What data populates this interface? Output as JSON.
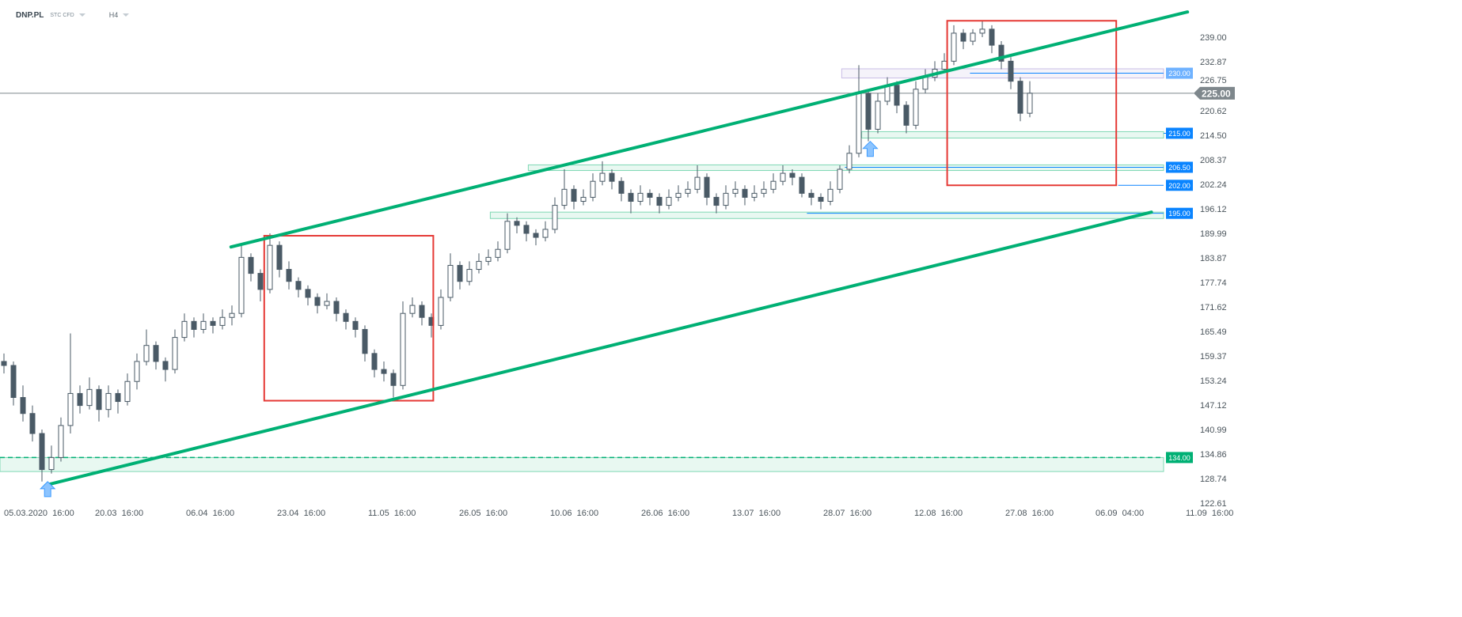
{
  "header": {
    "symbol": "DNP.PL",
    "type": "STC CFD",
    "timeframe": "H4"
  },
  "colors": {
    "candle": "#4a5a66",
    "trend": "#00b074",
    "box": "#e53935",
    "level_label": "#0a84ff",
    "zone_green": "#7fd8b4",
    "zone_purple": "#c9bde6",
    "price_tag": "#7e878c"
  },
  "chart_data": {
    "type": "candlestick",
    "ylim": [
      122.61,
      245
    ],
    "y_ticks": [
      "239.00",
      "232.87",
      "226.75",
      "220.62",
      "214.50",
      "208.37",
      "202.24",
      "196.12",
      "189.99",
      "183.87",
      "177.74",
      "171.62",
      "165.49",
      "159.37",
      "153.24",
      "147.12",
      "140.99",
      "134.86",
      "128.74",
      "122.61"
    ],
    "x_ticks": [
      "05.03.2020  16:00",
      "20.03  16:00",
      "06.04  16:00",
      "23.04  16:00",
      "11.05  16:00",
      "26.05  16:00",
      "10.06  16:00",
      "26.06  16:00",
      "13.07  16:00",
      "28.07  16:00",
      "12.08  16:00",
      "27.08  16:00",
      "06.09  04:00",
      "11.09  16:00"
    ],
    "candles_ohlc": [
      [
        158,
        160,
        155,
        157
      ],
      [
        157,
        158,
        147,
        149
      ],
      [
        149,
        152,
        143,
        145
      ],
      [
        145,
        147,
        138,
        140
      ],
      [
        140,
        141,
        128,
        131
      ],
      [
        131,
        137,
        130,
        134
      ],
      [
        134,
        144,
        133,
        142
      ],
      [
        142,
        165,
        140,
        150
      ],
      [
        150,
        152,
        145,
        147
      ],
      [
        147,
        154,
        146,
        151
      ],
      [
        151,
        152,
        143,
        146
      ],
      [
        146,
        152,
        144,
        150
      ],
      [
        150,
        151,
        145,
        148
      ],
      [
        148,
        155,
        147,
        153
      ],
      [
        153,
        160,
        151,
        158
      ],
      [
        158,
        166,
        157,
        162
      ],
      [
        162,
        163,
        156,
        158
      ],
      [
        158,
        159,
        153,
        156
      ],
      [
        156,
        166,
        155,
        164
      ],
      [
        164,
        170,
        163,
        168
      ],
      [
        168,
        169,
        164,
        166
      ],
      [
        166,
        170,
        165,
        168
      ],
      [
        168,
        169,
        165,
        167
      ],
      [
        167,
        171,
        166,
        169
      ],
      [
        169,
        172,
        167,
        170
      ],
      [
        170,
        187,
        169,
        184
      ],
      [
        184,
        185,
        178,
        180
      ],
      [
        180,
        181,
        173,
        176
      ],
      [
        176,
        190,
        175,
        187
      ],
      [
        187,
        188,
        179,
        181
      ],
      [
        181,
        183,
        176,
        178
      ],
      [
        178,
        179,
        174,
        176
      ],
      [
        176,
        177,
        172,
        174
      ],
      [
        174,
        175,
        170,
        172
      ],
      [
        172,
        175,
        171,
        173
      ],
      [
        173,
        174,
        168,
        170
      ],
      [
        170,
        171,
        166,
        168
      ],
      [
        168,
        169,
        164,
        166
      ],
      [
        166,
        167,
        158,
        160
      ],
      [
        160,
        161,
        154,
        156
      ],
      [
        156,
        158,
        153,
        155
      ],
      [
        155,
        156,
        149,
        152
      ],
      [
        152,
        173,
        151,
        170
      ],
      [
        170,
        174,
        169,
        172
      ],
      [
        172,
        173,
        167,
        169
      ],
      [
        169,
        170,
        164,
        167
      ],
      [
        167,
        176,
        166,
        174
      ],
      [
        174,
        185,
        173,
        182
      ],
      [
        182,
        183,
        176,
        178
      ],
      [
        178,
        183,
        177,
        181
      ],
      [
        181,
        185,
        180,
        183
      ],
      [
        183,
        186,
        182,
        184
      ],
      [
        184,
        188,
        183,
        186
      ],
      [
        186,
        195,
        185,
        193
      ],
      [
        193,
        194,
        190,
        192
      ],
      [
        192,
        193,
        188,
        190
      ],
      [
        190,
        191,
        187,
        189
      ],
      [
        189,
        193,
        188,
        191
      ],
      [
        191,
        199,
        190,
        197
      ],
      [
        197,
        206,
        196,
        201
      ],
      [
        201,
        202,
        196,
        198
      ],
      [
        198,
        201,
        197,
        199
      ],
      [
        199,
        205,
        198,
        203
      ],
      [
        203,
        208,
        202,
        205
      ],
      [
        205,
        206,
        201,
        203
      ],
      [
        203,
        204,
        198,
        200
      ],
      [
        200,
        201,
        195,
        198
      ],
      [
        198,
        202,
        197,
        200
      ],
      [
        200,
        201,
        197,
        199
      ],
      [
        199,
        200,
        195,
        197
      ],
      [
        197,
        201,
        196,
        199
      ],
      [
        199,
        202,
        198,
        200
      ],
      [
        200,
        203,
        199,
        201
      ],
      [
        201,
        207,
        200,
        204
      ],
      [
        204,
        205,
        197,
        199
      ],
      [
        199,
        200,
        195,
        197
      ],
      [
        197,
        202,
        196,
        200
      ],
      [
        200,
        203,
        199,
        201
      ],
      [
        201,
        202,
        197,
        199
      ],
      [
        199,
        202,
        198,
        200
      ],
      [
        200,
        203,
        199,
        201
      ],
      [
        201,
        205,
        200,
        203
      ],
      [
        203,
        207,
        202,
        205
      ],
      [
        205,
        206,
        202,
        204
      ],
      [
        204,
        205,
        199,
        200
      ],
      [
        200,
        201,
        197,
        199
      ],
      [
        199,
        200,
        196,
        198
      ],
      [
        198,
        203,
        197,
        201
      ],
      [
        201,
        207,
        200,
        206
      ],
      [
        206,
        212,
        205,
        210
      ],
      [
        210,
        232,
        209,
        225
      ],
      [
        225,
        226,
        213,
        216
      ],
      [
        216,
        225,
        215,
        223
      ],
      [
        223,
        229,
        222,
        227
      ],
      [
        227,
        228,
        220,
        222
      ],
      [
        222,
        223,
        215,
        217
      ],
      [
        217,
        228,
        216,
        226
      ],
      [
        226,
        231,
        225,
        229
      ],
      [
        229,
        233,
        228,
        231
      ],
      [
        231,
        235,
        230,
        233
      ],
      [
        233,
        242,
        232,
        240
      ],
      [
        240,
        241,
        236,
        238
      ],
      [
        238,
        241,
        237,
        240
      ],
      [
        240,
        243,
        239,
        241
      ],
      [
        241,
        242,
        235,
        237
      ],
      [
        237,
        238,
        231,
        233
      ],
      [
        233,
        234,
        226,
        228
      ],
      [
        228,
        229,
        218,
        220
      ],
      [
        220,
        228,
        219,
        225
      ]
    ],
    "current_price": "225.00",
    "levels": [
      {
        "label": "230.00",
        "price": 230,
        "zone": [
          228.8,
          231.1
        ],
        "zone_start_bar": 88.2,
        "style": "purple"
      },
      {
        "label": "215.00",
        "price": 215,
        "zone": [
          213.8,
          215.4
        ],
        "zone_start_bar": 90.3,
        "style": "green"
      },
      {
        "label": "206.50",
        "price": 206.5,
        "zone": [
          205.7,
          207.1
        ],
        "zone_start_bar": 55.2,
        "style": "green"
      },
      {
        "label": "202.00",
        "price": 202,
        "zone": null,
        "zone_start_bar": 117.3,
        "style": "line"
      },
      {
        "label": "195.00",
        "price": 195,
        "zone": [
          193.7,
          195.3
        ],
        "zone_start_bar": 51.2,
        "style": "green"
      },
      {
        "label": "134.00",
        "price": 134,
        "zone": [
          130.5,
          134
        ],
        "zone_start_bar": -0.5,
        "style": "dashed"
      }
    ],
    "trendlines": [
      {
        "from": [
          23.9,
          186.6
        ],
        "to": [
          124.6,
          245.3
        ]
      },
      {
        "from": [
          4.4,
          127.1
        ],
        "to": [
          120.8,
          195.3
        ]
      }
    ],
    "boxes": [
      {
        "bars": [
          27.4,
          45.2
        ],
        "prices": [
          148.2,
          189.4
        ]
      },
      {
        "bars": [
          99.3,
          117.1
        ],
        "prices": [
          202.0,
          243.1
        ]
      }
    ],
    "arrows": [
      {
        "bar": 4.6,
        "price": 126
      },
      {
        "bar": 91.2,
        "price": 211
      }
    ]
  }
}
